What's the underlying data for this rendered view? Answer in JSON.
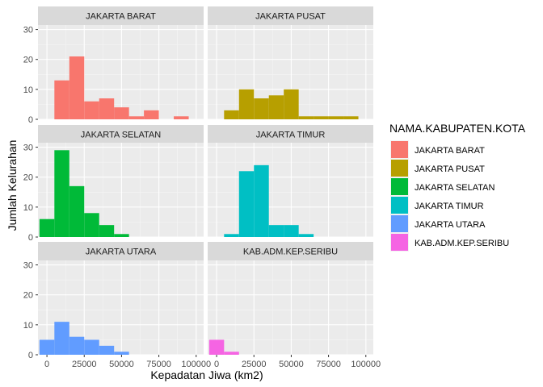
{
  "chart_data": {
    "type": "histogram",
    "facet_by": "NAMA.KABUPATEN.KOTA",
    "xlabel": "Kepadatan Jiwa (km2)",
    "ylabel": "Jumlah Kelurahan",
    "x_ticks": [
      0,
      25000,
      50000,
      75000,
      100000
    ],
    "y_ticks": [
      0,
      10,
      20,
      30
    ],
    "xlim": [
      -6000,
      105000
    ],
    "ylim": [
      0,
      31.5
    ],
    "bin_width": 10000,
    "bin_lefts": [
      -5000,
      5000,
      15000,
      25000,
      35000,
      45000,
      55000,
      65000,
      75000,
      85000
    ],
    "legend": {
      "title": "NAMA.KABUPATEN.KOTA",
      "position": "right"
    },
    "panels": [
      {
        "name": "JAKARTA BARAT",
        "color": "#F8766D",
        "counts": [
          0,
          13,
          21,
          6,
          7,
          4,
          1,
          3,
          0,
          1
        ]
      },
      {
        "name": "JAKARTA PUSAT",
        "color": "#B79F00",
        "counts": [
          0,
          3,
          10,
          7,
          8,
          10,
          1,
          1,
          1,
          1
        ]
      },
      {
        "name": "JAKARTA SELATAN",
        "color": "#00BA38",
        "counts": [
          6,
          29,
          17,
          8,
          4,
          1,
          0,
          0,
          0,
          0
        ]
      },
      {
        "name": "JAKARTA TIMUR",
        "color": "#00BFC4",
        "counts": [
          0,
          1,
          22,
          24,
          4,
          4,
          1,
          0,
          0,
          0
        ]
      },
      {
        "name": "JAKARTA UTARA",
        "color": "#619CFF",
        "counts": [
          5,
          11,
          6,
          5,
          3,
          1,
          0,
          0,
          0,
          0
        ]
      },
      {
        "name": "KAB.ADM.KEP.SERIBU",
        "color": "#F564E3",
        "counts": [
          5,
          1,
          0,
          0,
          0,
          0,
          0,
          0,
          0,
          0
        ]
      }
    ],
    "grid": true
  }
}
